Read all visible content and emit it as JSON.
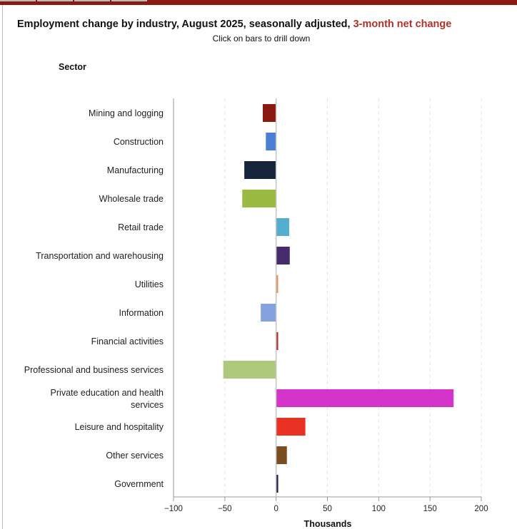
{
  "chart_data": {
    "type": "bar",
    "orientation": "horizontal",
    "title": "Employment change by industry, August 2025, seasonally adjusted,",
    "title_highlight": "3-month net change",
    "subtitle": "Click on bars to drill down",
    "ylabel": "Sector",
    "xlabel": "Thousands",
    "xlim": [
      -100,
      200
    ],
    "xticks": [
      -100,
      -50,
      0,
      50,
      100,
      150,
      200
    ],
    "xtick_labels": [
      "−100",
      "−50",
      "0",
      "50",
      "100",
      "150",
      "200"
    ],
    "grid": true,
    "categories": [
      "Mining and logging",
      "Construction",
      "Manufacturing",
      "Wholesale trade",
      "Retail trade",
      "Transportation and warehousing",
      "Utilities",
      "Information",
      "Financial activities",
      "Professional and business services",
      "Private education and health services",
      "Leisure and hospitality",
      "Other services",
      "Government"
    ],
    "values": [
      -13,
      -10,
      -31,
      -33,
      12.8,
      13.3,
      2,
      -15,
      2,
      -51.5,
      173,
      28.5,
      10.5,
      2
    ],
    "colors": [
      "#8b1a12",
      "#4a7fd4",
      "#16243b",
      "#9aba42",
      "#54aece",
      "#472c6b",
      "#e8955a",
      "#85a2e0",
      "#b0312a",
      "#aec87c",
      "#d434c9",
      "#ea3224",
      "#7b4e1f",
      "#1a1a4e"
    ]
  }
}
